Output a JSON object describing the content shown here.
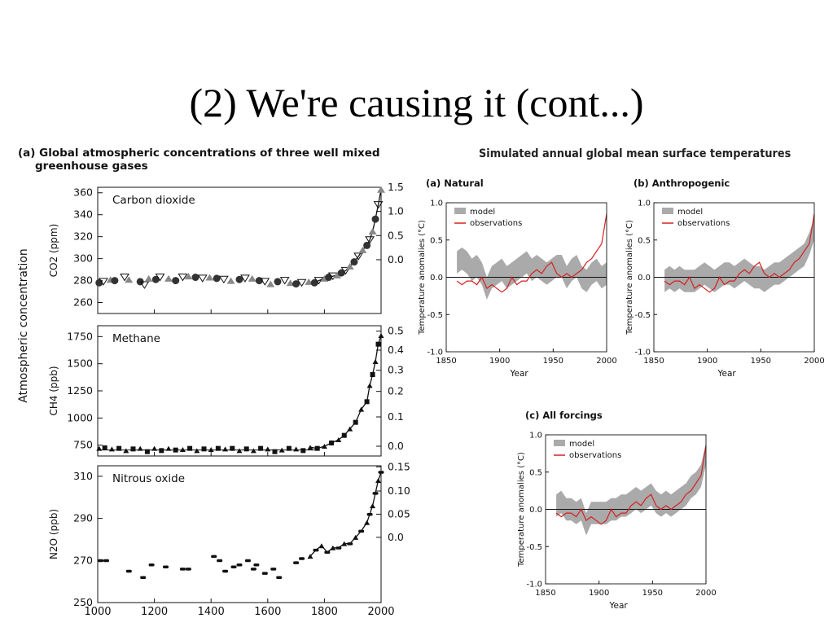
{
  "slide": {
    "title": "(2) We're causing it (cont...)"
  },
  "left": {
    "caption_line1": "(a) Global atmospheric concentrations of three well mixed",
    "caption_line2": "greenhouse gases",
    "ylabel": "Atmospheric concentration"
  },
  "right": {
    "title": "Simulated annual global mean surface temperatures"
  },
  "chart_data": [
    {
      "type": "scatter",
      "label": "Carbon dioxide",
      "ylabel": "CO2 (ppm)",
      "y2label": "",
      "xlim": [
        1000,
        2000
      ],
      "ylim": [
        250,
        365
      ],
      "yticks": [
        260,
        280,
        300,
        320,
        340,
        360
      ],
      "y2ticks_values": [
        "1.5",
        "1.0",
        "0.5",
        "0.0"
      ],
      "y2ticks_at": [
        365,
        343,
        321,
        299
      ],
      "points": [
        [
          1005,
          278
        ],
        [
          1020,
          279
        ],
        [
          1045,
          281
        ],
        [
          1060,
          280
        ],
        [
          1095,
          283
        ],
        [
          1110,
          281
        ],
        [
          1150,
          279
        ],
        [
          1165,
          276
        ],
        [
          1180,
          282
        ],
        [
          1205,
          281
        ],
        [
          1220,
          283
        ],
        [
          1250,
          282
        ],
        [
          1275,
          280
        ],
        [
          1300,
          283
        ],
        [
          1320,
          284
        ],
        [
          1345,
          283
        ],
        [
          1370,
          282
        ],
        [
          1395,
          283
        ],
        [
          1420,
          282
        ],
        [
          1445,
          281
        ],
        [
          1470,
          280
        ],
        [
          1500,
          281
        ],
        [
          1520,
          282
        ],
        [
          1545,
          282
        ],
        [
          1570,
          280
        ],
        [
          1590,
          279
        ],
        [
          1610,
          277
        ],
        [
          1635,
          279
        ],
        [
          1660,
          280
        ],
        [
          1680,
          278
        ],
        [
          1700,
          277
        ],
        [
          1720,
          278
        ],
        [
          1745,
          279
        ],
        [
          1765,
          278
        ],
        [
          1780,
          280
        ],
        [
          1800,
          282
        ],
        [
          1815,
          283
        ],
        [
          1830,
          284
        ],
        [
          1845,
          285
        ],
        [
          1860,
          287
        ],
        [
          1875,
          289
        ],
        [
          1890,
          293
        ],
        [
          1905,
          297
        ],
        [
          1920,
          302
        ],
        [
          1935,
          308
        ],
        [
          1950,
          312
        ],
        [
          1960,
          317
        ],
        [
          1970,
          325
        ],
        [
          1980,
          336
        ],
        [
          1990,
          349
        ],
        [
          2000,
          363
        ]
      ]
    },
    {
      "type": "scatter",
      "label": "Methane",
      "ylabel": "CH4 (ppb)",
      "xlim": [
        1000,
        2000
      ],
      "ylim": [
        650,
        1850
      ],
      "yticks": [
        750,
        1000,
        1250,
        1500,
        1750
      ],
      "y2ticks_values": [
        "0.5",
        "0.4",
        "0.3",
        "0.2",
        "0.1",
        "0.0"
      ],
      "y2ticks_at": [
        1800,
        1625,
        1440,
        1245,
        1010,
        740
      ],
      "points": [
        [
          1005,
          720
        ],
        [
          1025,
          725
        ],
        [
          1050,
          715
        ],
        [
          1075,
          720
        ],
        [
          1100,
          700
        ],
        [
          1125,
          715
        ],
        [
          1150,
          720
        ],
        [
          1175,
          690
        ],
        [
          1200,
          720
        ],
        [
          1225,
          700
        ],
        [
          1250,
          720
        ],
        [
          1275,
          705
        ],
        [
          1300,
          710
        ],
        [
          1325,
          720
        ],
        [
          1350,
          700
        ],
        [
          1375,
          715
        ],
        [
          1400,
          710
        ],
        [
          1425,
          720
        ],
        [
          1450,
          715
        ],
        [
          1475,
          720
        ],
        [
          1500,
          700
        ],
        [
          1525,
          715
        ],
        [
          1550,
          700
        ],
        [
          1575,
          720
        ],
        [
          1600,
          715
        ],
        [
          1625,
          690
        ],
        [
          1650,
          705
        ],
        [
          1675,
          720
        ],
        [
          1700,
          715
        ],
        [
          1725,
          700
        ],
        [
          1750,
          730
        ],
        [
          1775,
          720
        ],
        [
          1800,
          740
        ],
        [
          1825,
          770
        ],
        [
          1850,
          800
        ],
        [
          1870,
          840
        ],
        [
          1890,
          900
        ],
        [
          1910,
          960
        ],
        [
          1930,
          1080
        ],
        [
          1950,
          1150
        ],
        [
          1960,
          1300
        ],
        [
          1970,
          1400
        ],
        [
          1980,
          1520
        ],
        [
          1990,
          1680
        ],
        [
          2000,
          1760
        ]
      ]
    },
    {
      "type": "scatter",
      "label": "Nitrous oxide",
      "ylabel": "N2O (ppb)",
      "xlim": [
        1000,
        2000
      ],
      "ylim": [
        250,
        315
      ],
      "yticks": [
        250,
        270,
        290,
        310
      ],
      "y2ticks_values": [
        "0.15",
        "0.10",
        "0.05",
        "0.0"
      ],
      "y2ticks_at": [
        314.5,
        303,
        292,
        281
      ],
      "points": [
        [
          1010,
          270
        ],
        [
          1030,
          270
        ],
        [
          1110,
          265
        ],
        [
          1160,
          262
        ],
        [
          1190,
          268
        ],
        [
          1240,
          267
        ],
        [
          1300,
          266
        ],
        [
          1320,
          266
        ],
        [
          1410,
          272
        ],
        [
          1430,
          270
        ],
        [
          1450,
          265
        ],
        [
          1480,
          267
        ],
        [
          1500,
          268
        ],
        [
          1530,
          270
        ],
        [
          1550,
          266
        ],
        [
          1560,
          268
        ],
        [
          1590,
          264
        ],
        [
          1620,
          266
        ],
        [
          1640,
          262
        ],
        [
          1700,
          269
        ],
        [
          1720,
          271
        ],
        [
          1750,
          272
        ],
        [
          1770,
          275
        ],
        [
          1790,
          277
        ],
        [
          1810,
          274
        ],
        [
          1830,
          276
        ],
        [
          1850,
          276
        ],
        [
          1870,
          278
        ],
        [
          1890,
          278
        ],
        [
          1910,
          281
        ],
        [
          1930,
          284
        ],
        [
          1950,
          288
        ],
        [
          1960,
          292
        ],
        [
          1970,
          296
        ],
        [
          1980,
          302
        ],
        [
          1990,
          308
        ],
        [
          2000,
          312
        ]
      ]
    },
    {
      "type": "line",
      "title": "(a) Natural",
      "xlabel": "Year",
      "ylabel": "Temperature anomalies (°C)",
      "xlim": [
        1850,
        2000
      ],
      "ylim": [
        -1.0,
        1.0
      ],
      "xticks": [
        1850,
        1900,
        1950,
        2000
      ],
      "yticks": [
        1.0,
        0.5,
        0.0,
        -0.5,
        -1.0
      ],
      "legend": [
        "model",
        "observations"
      ],
      "series": [
        {
          "name": "model",
          "band_center": [
            0.2,
            0.25,
            0.2,
            0.1,
            0.15,
            0.05,
            -0.15,
            0.0,
            0.05,
            0.1,
            0.0,
            0.05,
            0.1,
            0.15,
            0.2,
            0.1,
            0.15,
            0.1,
            0.05,
            0.1,
            0.15,
            0.15,
            0.0,
            0.1,
            0.15,
            0.0,
            -0.05,
            0.05,
            0.1,
            0.0,
            0.05
          ],
          "band_halfwidth": 0.15
        },
        {
          "name": "observations",
          "values": [
            -0.05,
            -0.1,
            -0.05,
            -0.05,
            -0.1,
            0.0,
            -0.15,
            -0.1,
            -0.15,
            -0.2,
            -0.15,
            0.0,
            -0.1,
            -0.05,
            -0.05,
            0.05,
            0.1,
            0.05,
            0.15,
            0.2,
            0.05,
            0.0,
            0.05,
            0.0,
            0.05,
            0.1,
            0.2,
            0.25,
            0.35,
            0.45,
            0.85
          ]
        }
      ]
    },
    {
      "type": "line",
      "title": "(b) Anthropogenic",
      "xlabel": "Year",
      "ylabel": "Temperature anomalies (°C)",
      "xlim": [
        1850,
        2000
      ],
      "ylim": [
        -1.0,
        1.0
      ],
      "xticks": [
        1850,
        1900,
        1950,
        2000
      ],
      "yticks": [
        1.0,
        0.5,
        0.0,
        -0.5,
        -1.0
      ],
      "legend": [
        "model",
        "observations"
      ],
      "series": [
        {
          "name": "model",
          "band_center": [
            -0.05,
            0.0,
            -0.05,
            0.0,
            -0.05,
            -0.05,
            -0.05,
            0.0,
            0.05,
            0.0,
            -0.05,
            0.0,
            0.05,
            0.05,
            0.0,
            0.05,
            0.1,
            0.05,
            0.0,
            0.0,
            -0.05,
            0.0,
            0.05,
            0.05,
            0.1,
            0.15,
            0.2,
            0.25,
            0.3,
            0.45,
            0.65
          ],
          "band_halfwidth": 0.15
        },
        {
          "name": "observations",
          "values": [
            -0.05,
            -0.1,
            -0.05,
            -0.05,
            -0.1,
            0.0,
            -0.15,
            -0.1,
            -0.15,
            -0.2,
            -0.15,
            0.0,
            -0.1,
            -0.05,
            -0.05,
            0.05,
            0.1,
            0.05,
            0.15,
            0.2,
            0.05,
            0.0,
            0.05,
            0.0,
            0.05,
            0.1,
            0.2,
            0.25,
            0.35,
            0.45,
            0.85
          ]
        }
      ]
    },
    {
      "type": "line",
      "title": "(c) All forcings",
      "xlabel": "Year",
      "ylabel": "Temperature anomalies (°C)",
      "xlim": [
        1850,
        2000
      ],
      "ylim": [
        -1.0,
        1.0
      ],
      "xticks": [
        1850,
        1900,
        1950,
        2000
      ],
      "yticks": [
        1.0,
        0.5,
        0.0,
        -0.5,
        -1.0
      ],
      "legend": [
        "model",
        "observations"
      ],
      "series": [
        {
          "name": "model",
          "band_center": [
            0.05,
            0.1,
            0.0,
            0.0,
            -0.05,
            0.0,
            -0.2,
            -0.05,
            -0.05,
            -0.05,
            -0.05,
            0.0,
            0.0,
            0.05,
            0.05,
            0.1,
            0.15,
            0.1,
            0.15,
            0.2,
            0.1,
            0.05,
            0.1,
            0.05,
            0.1,
            0.15,
            0.2,
            0.3,
            0.35,
            0.45,
            0.75
          ],
          "band_halfwidth": 0.15
        },
        {
          "name": "observations",
          "values": [
            -0.05,
            -0.1,
            -0.05,
            -0.05,
            -0.1,
            0.0,
            -0.15,
            -0.1,
            -0.15,
            -0.2,
            -0.15,
            0.0,
            -0.1,
            -0.05,
            -0.05,
            0.05,
            0.1,
            0.05,
            0.15,
            0.2,
            0.05,
            0.0,
            0.05,
            0.0,
            0.05,
            0.1,
            0.2,
            0.25,
            0.35,
            0.45,
            0.85
          ]
        }
      ]
    }
  ],
  "left_xaxis": {
    "ticks": [
      1000,
      1200,
      1400,
      1600,
      1800,
      2000
    ]
  },
  "colors": {
    "model": "#aaaaaa",
    "observations": "#d42020",
    "ink": "#111111"
  }
}
